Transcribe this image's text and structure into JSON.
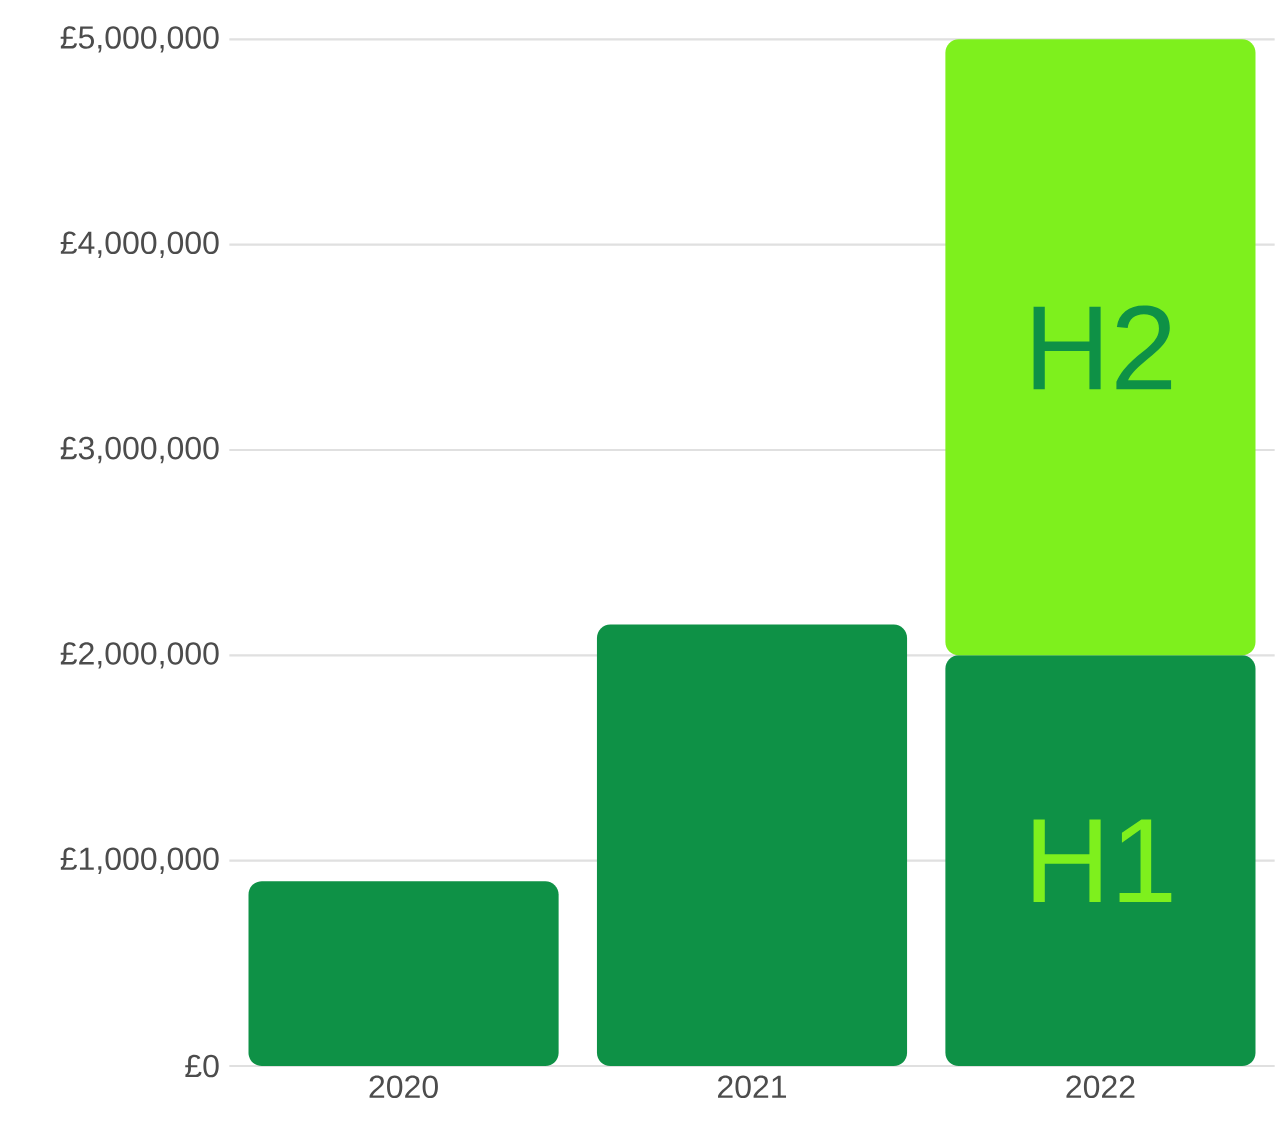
{
  "chart_data": {
    "type": "bar",
    "stacked": true,
    "categories": [
      "2020",
      "2021",
      "2022"
    ],
    "series": [
      {
        "name": "H1",
        "color": "#0e9146",
        "values": [
          900000,
          2150000,
          2000000
        ]
      },
      {
        "name": "H2",
        "color": "#7ef01d",
        "values": [
          null,
          null,
          3000000
        ]
      }
    ],
    "ylim": [
      0,
      5000000
    ],
    "yticks": [
      {
        "value": 0,
        "label": "£0"
      },
      {
        "value": 1000000,
        "label": "£1,000,000"
      },
      {
        "value": 2000000,
        "label": "£2,000,000"
      },
      {
        "value": 3000000,
        "label": "£3,000,000"
      },
      {
        "value": 4000000,
        "label": "£4,000,000"
      },
      {
        "value": 5000000,
        "label": "£5,000,000"
      }
    ],
    "grid": "y"
  }
}
